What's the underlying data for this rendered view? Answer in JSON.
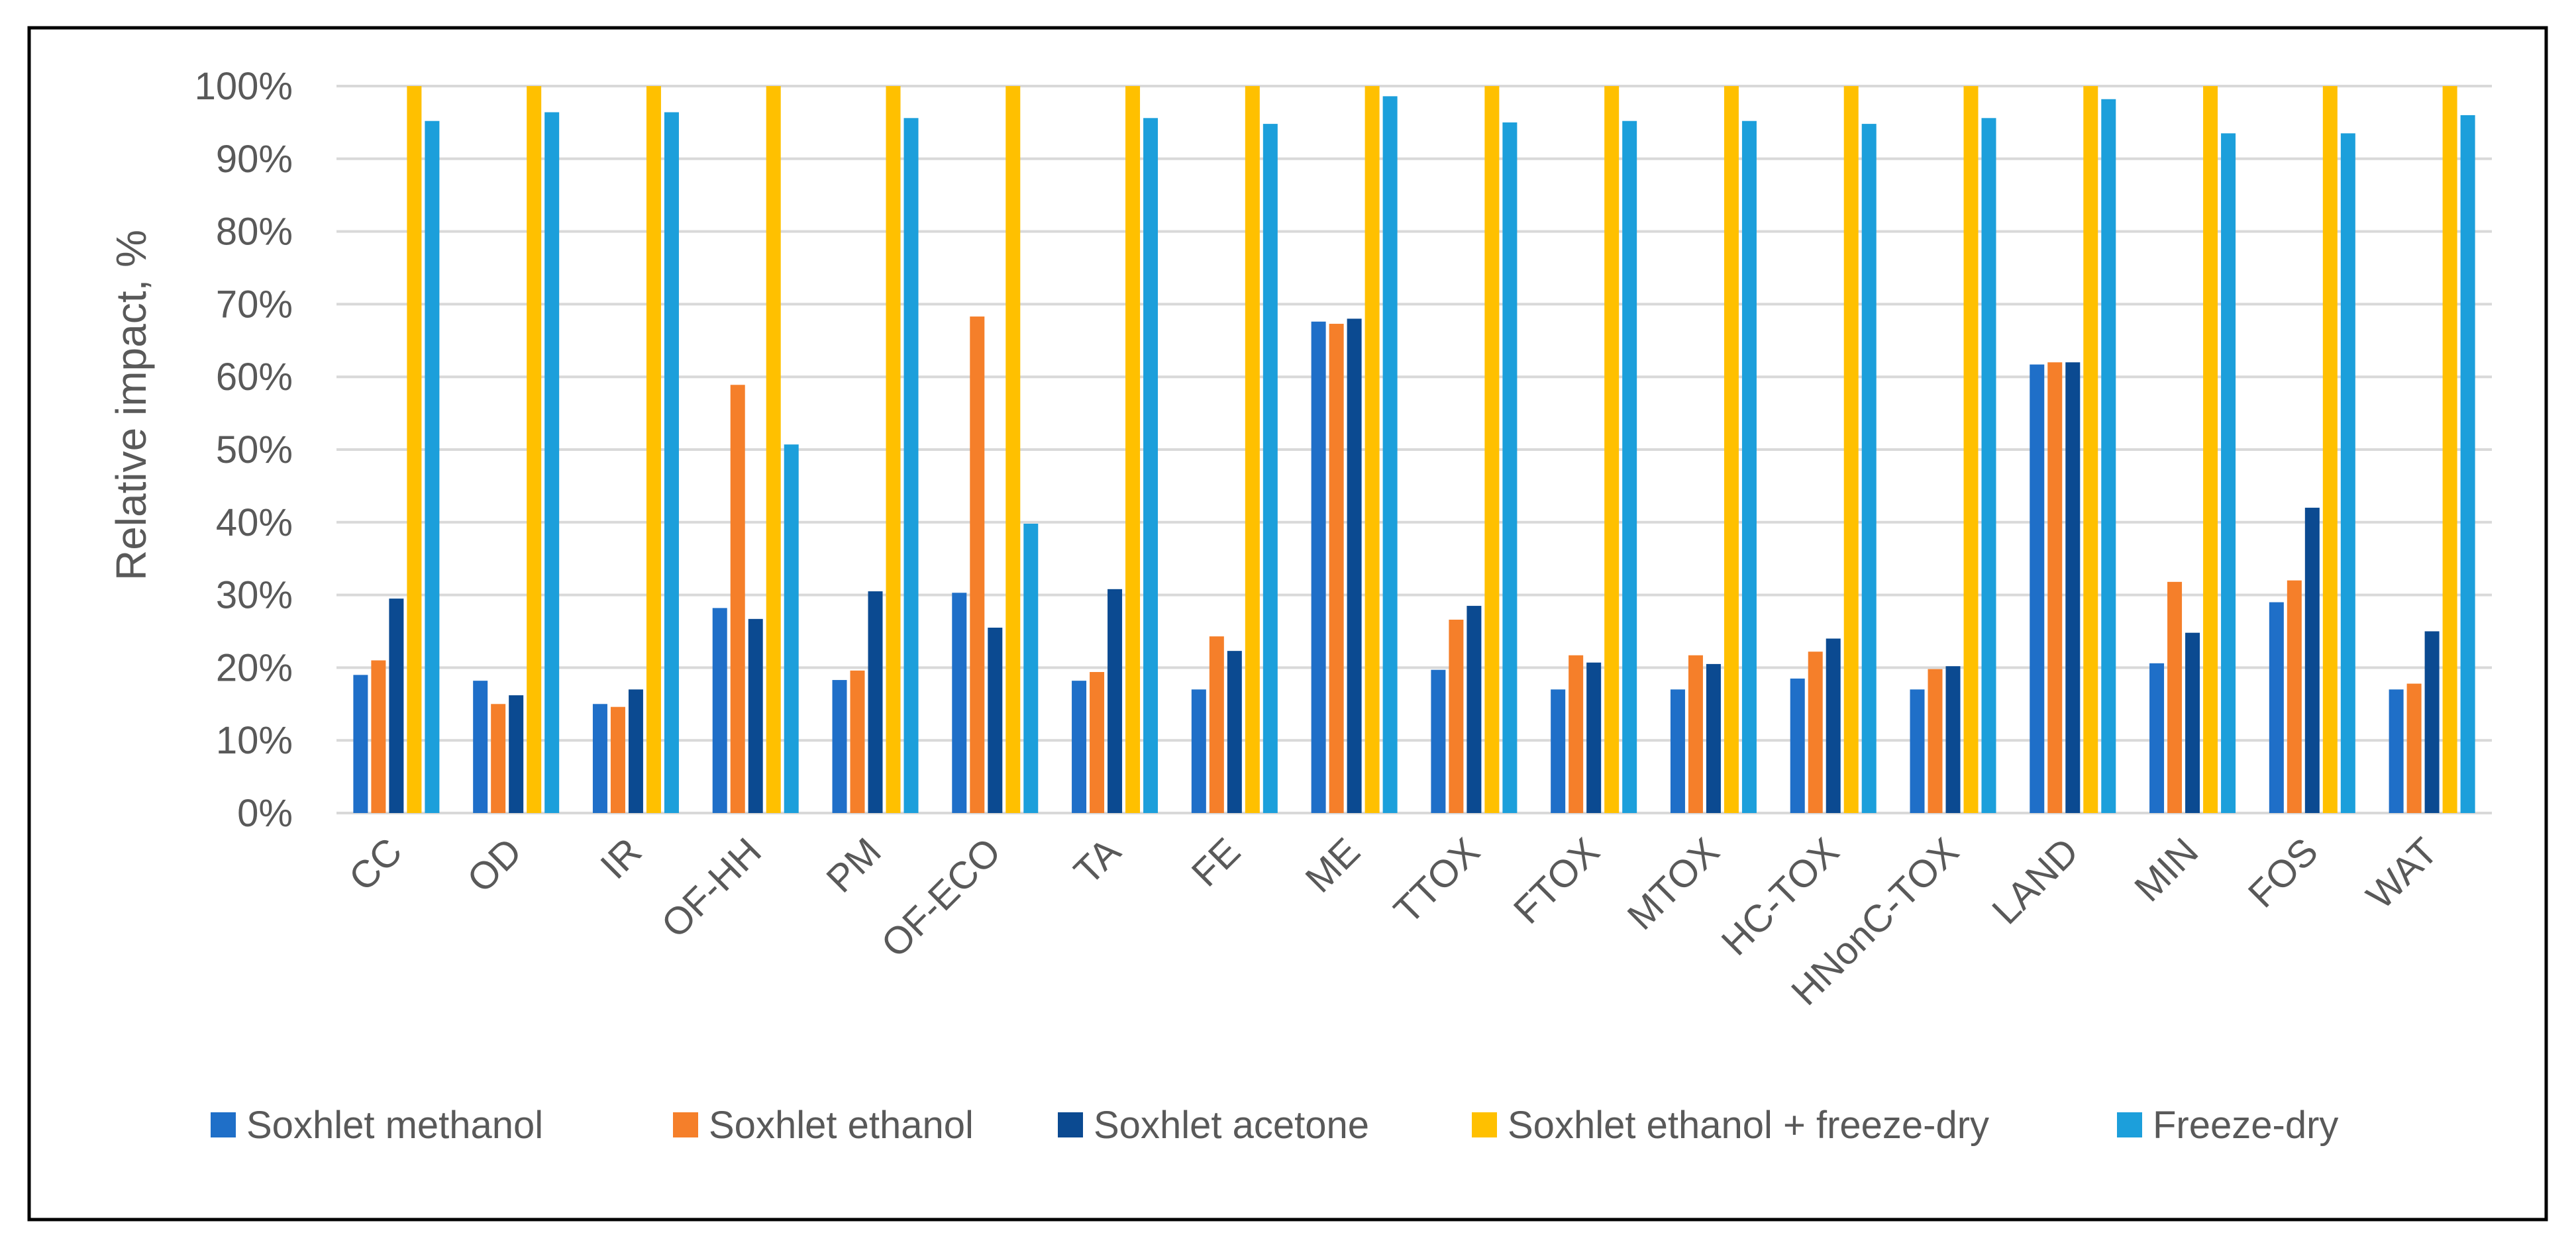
{
  "chart_data": {
    "type": "bar",
    "title": "",
    "xlabel": "",
    "ylabel": "Relative impact, %",
    "ylim": [
      0,
      100
    ],
    "yticks": [
      "0%",
      "10%",
      "20%",
      "30%",
      "40%",
      "50%",
      "60%",
      "70%",
      "80%",
      "90%",
      "100%"
    ],
    "ytick_values": [
      0,
      10,
      20,
      30,
      40,
      50,
      60,
      70,
      80,
      90,
      100
    ],
    "grid": true,
    "legend_position": "bottom",
    "categories": [
      "CC",
      "OD",
      "IR",
      "OF-HH",
      "PM",
      "OF-ECO",
      "TA",
      "FE",
      "ME",
      "TTOX",
      "FTOX",
      "MTOX",
      "HC-TOX",
      "HNonC-TOX",
      "LAND",
      "MIN",
      "FOS",
      "WAT"
    ],
    "series": [
      {
        "name": "Soxhlet methanol",
        "color": "#1f6fc8",
        "values": [
          19,
          18.2,
          15,
          28.2,
          18.3,
          30.3,
          18.2,
          17,
          67.6,
          19.7,
          17,
          17,
          18.5,
          17,
          61.7,
          20.6,
          29,
          17
        ]
      },
      {
        "name": "Soxhlet ethanol",
        "color": "#f57f2a",
        "values": [
          21,
          15,
          14.6,
          58.9,
          19.6,
          68.3,
          19.4,
          24.3,
          67.3,
          26.6,
          21.7,
          21.7,
          22.2,
          19.8,
          62,
          31.8,
          32,
          17.8
        ]
      },
      {
        "name": "Soxhlet acetone",
        "color": "#0b4a91",
        "values": [
          29.5,
          16.2,
          17,
          26.7,
          30.5,
          25.5,
          30.8,
          22.3,
          68,
          28.5,
          20.7,
          20.5,
          24,
          20.2,
          62,
          24.8,
          42,
          25
        ]
      },
      {
        "name": "Soxhlet ethanol + freeze-dry",
        "color": "#ffc000",
        "values": [
          100,
          100,
          100,
          100,
          100,
          100,
          100,
          100,
          100,
          100,
          100,
          100,
          100,
          100,
          100,
          100,
          100,
          100
        ]
      },
      {
        "name": "Freeze-dry",
        "color": "#1c9fdb",
        "values": [
          95.2,
          96.4,
          96.4,
          50.7,
          95.6,
          39.8,
          95.6,
          94.8,
          98.6,
          95,
          95.2,
          95.2,
          94.8,
          95.6,
          98.2,
          93.5,
          93.5,
          96
        ]
      }
    ]
  }
}
